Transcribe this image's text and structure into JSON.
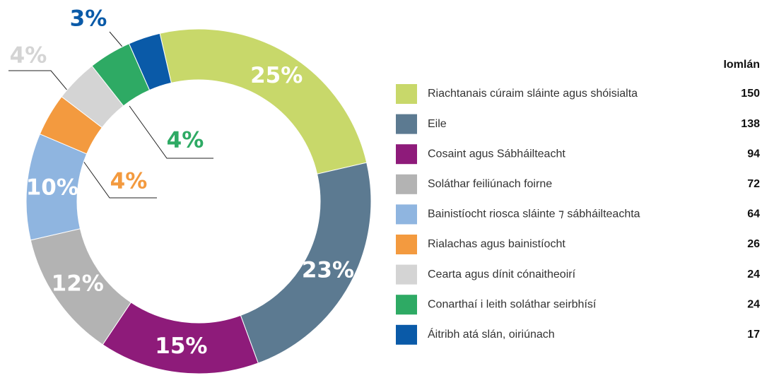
{
  "chart_data": {
    "type": "pie",
    "donut": true,
    "categories": [
      "Riachtanais cúraim sláinte agus shóisialta",
      "Eile",
      "Cosaint agus Sábháilteacht",
      "Soláthar feiliúnach foirne",
      "Bainistíocht riosca sláinte ⁊ sábháilteachta",
      "Rialachas agus bainistíocht",
      "Cearta agus dínit cónaitheoirí",
      "Conarthaí i leith soláthar seirbhísí",
      "Áitribh atá slán, oiriúnach"
    ],
    "values": [
      25,
      23,
      15,
      12,
      10,
      4,
      4,
      4,
      3
    ],
    "value_labels": [
      "25%",
      "23%",
      "15%",
      "12%",
      "10%",
      "4%",
      "4%",
      "4%",
      "3%"
    ],
    "colors": [
      "#c8d86a",
      "#5c7a91",
      "#8e1b7a",
      "#b3b3b3",
      "#8fb5e0",
      "#f39a3f",
      "#d4d4d4",
      "#2eaa64",
      "#0a5aa8"
    ],
    "totals_header": "Iomlán",
    "totals": [
      150,
      138,
      94,
      72,
      64,
      26,
      24,
      24,
      17
    ]
  }
}
